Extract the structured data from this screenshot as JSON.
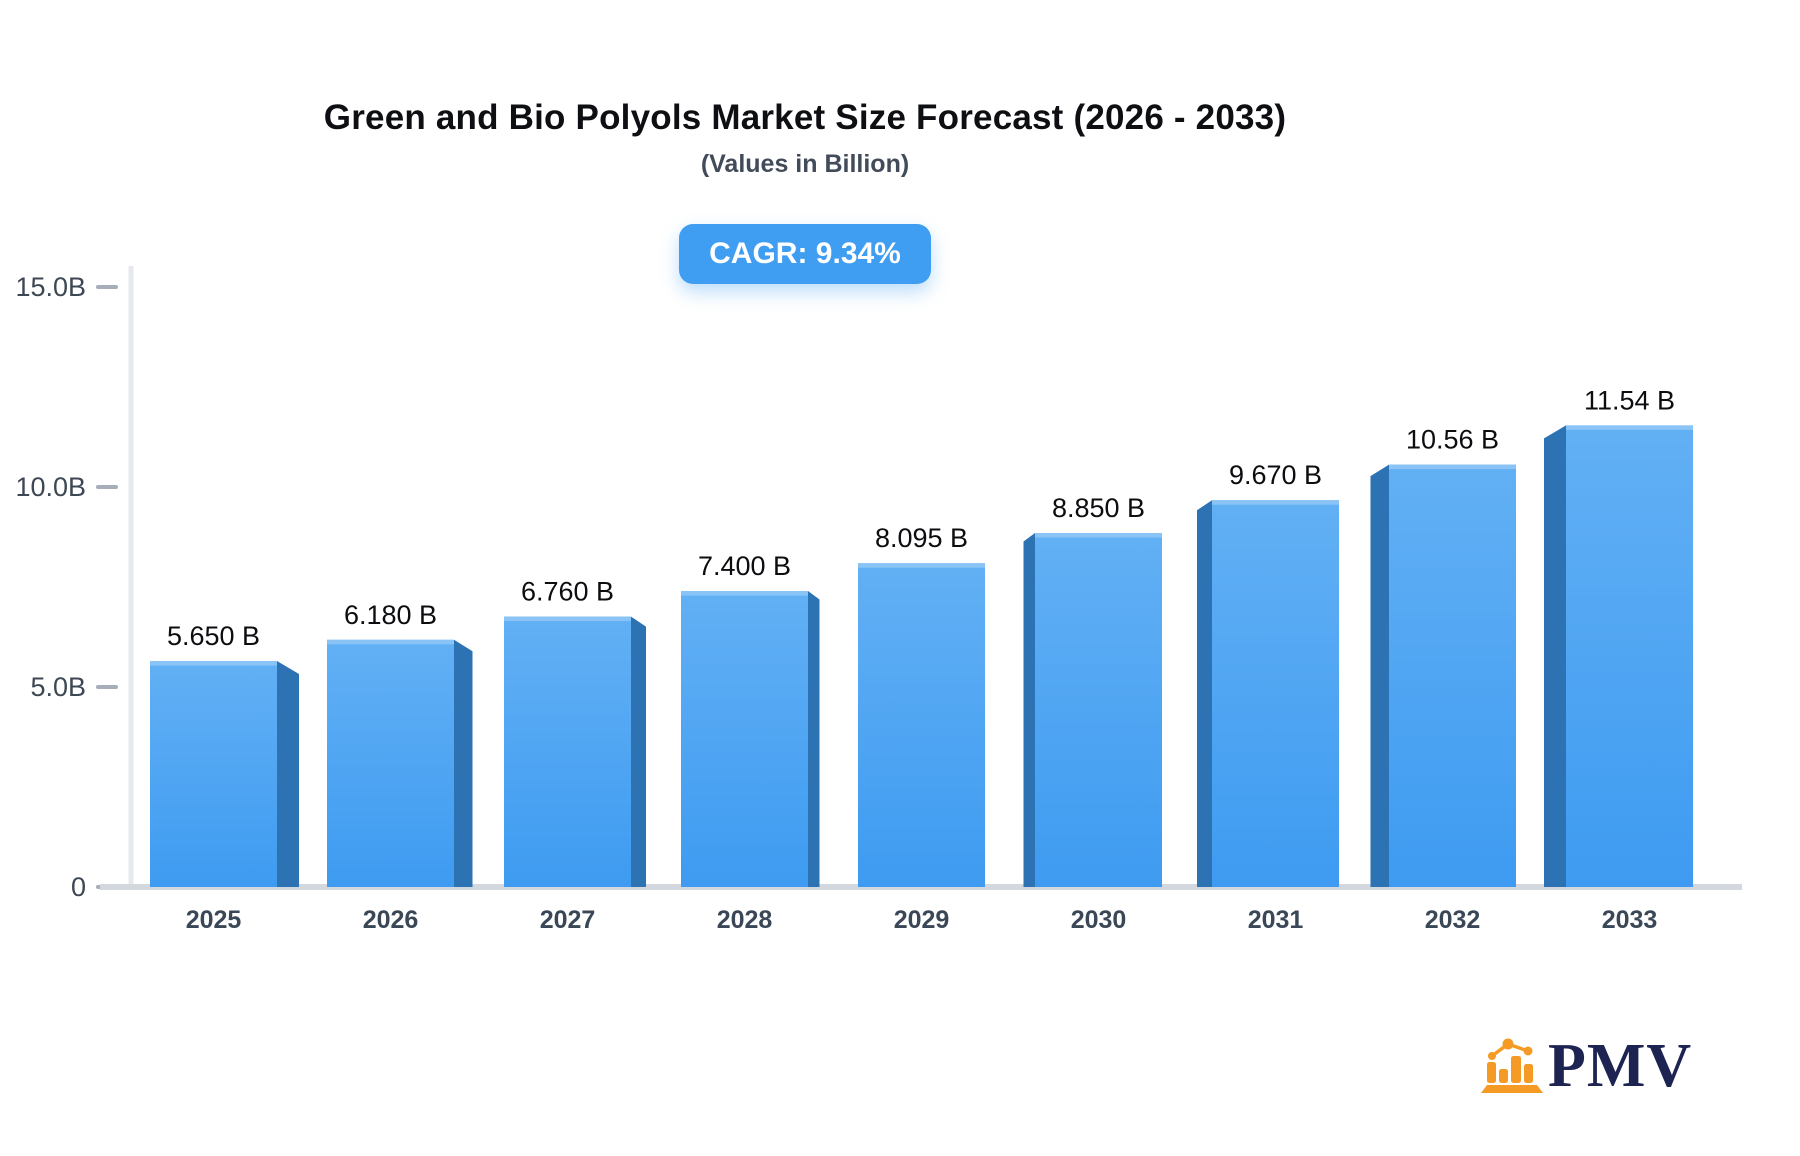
{
  "header": {
    "title": "Green and Bio Polyols Market Size Forecast (2026 - 2033)",
    "subtitle": "(Values in Billion)",
    "badge_label": "CAGR: 9.34%"
  },
  "logo": {
    "text": "PMV",
    "icon": "bar-chart-trend-icon",
    "icon_color": "#f59b25",
    "text_color": "#1d2452"
  },
  "colors": {
    "badge_bg": "#3f9ef2",
    "bar_face_top": "#62b0f4",
    "bar_face_bottom": "#3e9bf1",
    "bar_top_highlight": "#8ac4f7",
    "bar_side": "#2d73b4",
    "baseline": "#d3d7de",
    "axis_line": "#e5e8ed",
    "tick_dash": "#a7aeb9",
    "y_label": "#3e4754",
    "x_label": "#3a4757",
    "value_label": "#0c0d10"
  },
  "chart_data": {
    "type": "bar",
    "title": "Green and Bio Polyols Market Size Forecast (2026 - 2033)",
    "subtitle": "(Values in Billion)",
    "annotation": "CAGR: 9.34%",
    "categories": [
      "2025",
      "2026",
      "2027",
      "2028",
      "2029",
      "2030",
      "2031",
      "2032",
      "2033"
    ],
    "values": [
      5.65,
      6.18,
      6.76,
      7.4,
      8.095,
      8.85,
      9.67,
      10.56,
      11.54
    ],
    "value_labels": [
      "5.650 B",
      "6.180 B",
      "6.760 B",
      "7.400 B",
      "8.095 B",
      "8.850 B",
      "9.670 B",
      "10.56 B",
      "11.54 B"
    ],
    "xlabel": "",
    "ylabel": "",
    "ylim": [
      0,
      15
    ],
    "y_ticks": [
      {
        "value": 15,
        "label": "15.0B"
      },
      {
        "value": 10,
        "label": "10.0B"
      },
      {
        "value": 5,
        "label": "5.0B"
      },
      {
        "value": 0,
        "label": "0"
      }
    ],
    "grid": false,
    "legend": false,
    "style": "pseudo-3d bars, center perspective"
  }
}
